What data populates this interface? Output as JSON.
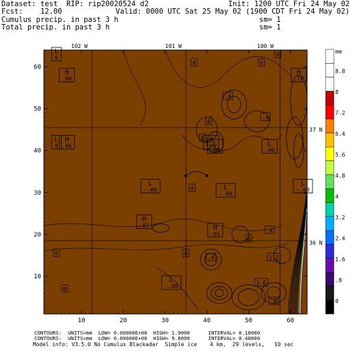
{
  "header": {
    "line1_left": "Dataset: test  RIP: rip20020524 d2",
    "line1_right": "Init: 1200 UTC Fri 24 May 02",
    "line2_left": "Fcst:    12.00",
    "line2_right": "Valid: 0000 UTC Sat 25 May 02 (1900 CDT Fri 24 May 02)",
    "line3_left": "Cumulus precip. in past 3 h",
    "line3_right": "sm= 1",
    "line4_left": "Total precip. in past 3 h",
    "line4_right": "sm= 1"
  },
  "footer": {
    "line1": "CONTOURS:  UNITS=mm  LOW= 0.00000E+00  HIGH= 1.9000      INTERVAL= 0.10000",
    "line2": "CONTOURS:  UNITS=mm  LOW= 0.00000E+00  HIGH= 9.8000      INTERVAL= 0.40000",
    "line3": "Model info: V3.5.0 No Cumulus Blackadar  Simple ice    4 km,  29 levels,   10 sec"
  },
  "colors": {
    "field_fill": "#7b3f00",
    "contour": "#000000",
    "tick_colors": [
      "#000000",
      "#1a1a1a",
      "#3b0a6b",
      "#6a0dad",
      "#2b2bdc",
      "#0070ff",
      "#00b0ff",
      "#00d0b0",
      "#00c000",
      "#60e060",
      "#c0ff40",
      "#ffff00",
      "#ffc000",
      "#ff7f00",
      "#ff0000",
      "#c00000",
      "#ffffff",
      "#ffffff",
      "#ffffff"
    ]
  },
  "chart_data": {
    "type": "contour",
    "title": "",
    "xlabel": "",
    "ylabel": "",
    "xlim": [
      1,
      64
    ],
    "ylim": [
      1,
      64
    ],
    "x_ticks": [
      10,
      20,
      30,
      40,
      50,
      60
    ],
    "y_ticks": [
      10,
      20,
      30,
      40,
      50,
      60
    ],
    "x_tick_labels": [
      "10",
      "20",
      "30",
      "40",
      "50",
      "60"
    ],
    "y_tick_labels": [
      "10",
      "20",
      "30",
      "40",
      "50",
      "60"
    ],
    "longitude_labels": [
      {
        "text": "102 W",
        "x": 9.5
      },
      {
        "text": "101 W",
        "x": 32
      },
      {
        "text": "100 W",
        "x": 54
      }
    ],
    "latitude_labels": [
      {
        "text": "37 N",
        "y": 45
      },
      {
        "text": "36 N",
        "y": 18
      }
    ],
    "meridians_x": [
      12.5,
      35,
      57.5
    ],
    "parallels_y": [
      45.5,
      18.5
    ],
    "colorbar": {
      "unit_label": "mm",
      "labels": [
        "0",
        ".8",
        "1.6",
        "2.4",
        "3.2",
        "4",
        "4.8",
        "5.6",
        "6.4",
        "7.2",
        "8",
        "8.8"
      ]
    },
    "highs_lows": [
      {
        "type": "H",
        "value": ".06",
        "x": 6.5,
        "y": 58
      },
      {
        "type": "H",
        "value": ".06",
        "x": 6.5,
        "y": 42
      },
      {
        "type": "L",
        "value": "0",
        "x": 4,
        "y": 63
      },
      {
        "type": "L",
        "value": "0",
        "x": 4,
        "y": 42
      },
      {
        "type": "L",
        "value": "-.00",
        "x": 26.5,
        "y": 31.5
      },
      {
        "type": "H",
        "value": ".01",
        "x": 25,
        "y": 23
      },
      {
        "type": "H",
        "value": ".06",
        "x": 41,
        "y": 42
      },
      {
        "type": "L",
        "value": ".00",
        "x": 42,
        "y": 41
      },
      {
        "type": "L",
        "value": "-.00",
        "x": 44.5,
        "y": 30.5
      },
      {
        "type": "H",
        "value": ".01",
        "x": 42,
        "y": 21
      },
      {
        "type": "L",
        "value": ".00",
        "x": 55,
        "y": 41
      },
      {
        "type": "L",
        "value": "-.00",
        "x": 63,
        "y": 31.5
      },
      {
        "type": "H",
        "value": ".18",
        "x": 62,
        "y": 58
      },
      {
        "type": "L",
        "value": "-.00",
        "x": 31.5,
        "y": 8.5
      }
    ],
    "contour_labels": [
      {
        "text": "0",
        "x": 37,
        "y": 61
      },
      {
        "text": "0",
        "x": 53,
        "y": 61
      },
      {
        "text": "0",
        "x": 57,
        "y": 63
      },
      {
        "text": "0",
        "x": 40.5,
        "y": 47
      },
      {
        "text": "0",
        "x": 39,
        "y": 43
      },
      {
        "text": "0",
        "x": 36.5,
        "y": 31
      },
      {
        "text": "0",
        "x": 50,
        "y": 19
      },
      {
        "text": "0",
        "x": 4,
        "y": 15.5
      },
      {
        "text": "0",
        "x": 6,
        "y": 7
      },
      {
        "text": "0",
        "x": 35,
        "y": 15.5
      },
      {
        "text": ".4",
        "x": 45,
        "y": 53
      },
      {
        "text": ".4",
        "x": 54,
        "y": 48
      },
      {
        "text": ".4",
        "x": 55,
        "y": 21
      },
      {
        "text": ".4",
        "x": 41,
        "y": 14.5
      },
      {
        "text": "1.2",
        "x": 56,
        "y": 14.5
      },
      {
        "text": "1.6",
        "x": 53,
        "y": 8.5
      },
      {
        "text": ".8",
        "x": 56,
        "y": 4
      }
    ]
  }
}
